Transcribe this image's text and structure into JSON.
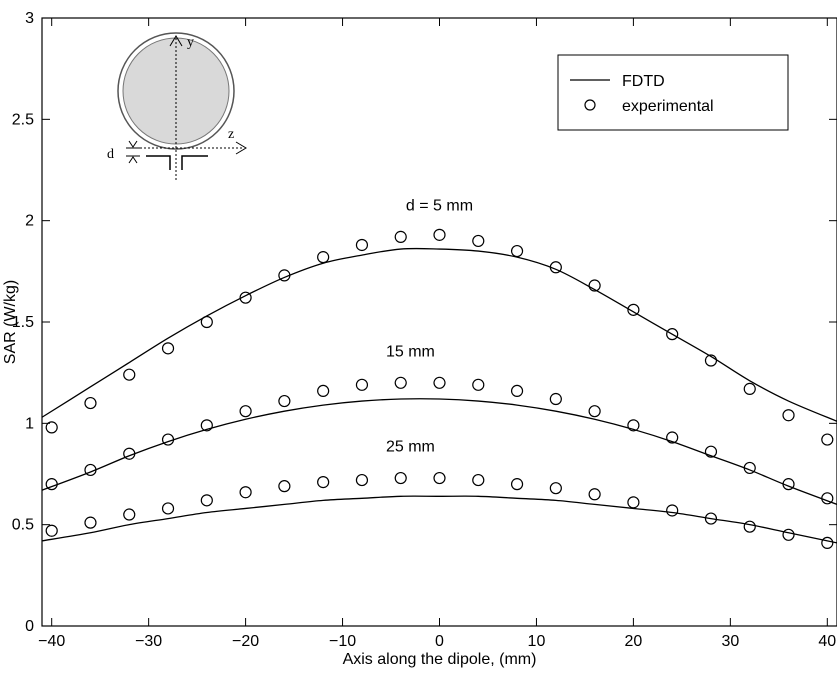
{
  "chart_data": {
    "type": "line",
    "title": "",
    "xlabel": "Axis along the dipole, (mm)",
    "ylabel": "SAR (W/kg)",
    "xlim": [
      -41,
      41
    ],
    "ylim": [
      0,
      3
    ],
    "xticks": [
      -40,
      -30,
      -20,
      -10,
      0,
      10,
      20,
      30,
      40
    ],
    "xtick_labels": [
      "−40",
      "−30",
      "−20",
      "−10",
      "0",
      "10",
      "20",
      "30",
      "40"
    ],
    "yticks": [
      0,
      0.5,
      1,
      1.5,
      2,
      2.5,
      3
    ],
    "ytick_labels": [
      "0",
      "0.5",
      "1",
      "1.5",
      "2",
      "2.5",
      "3"
    ],
    "grid": false,
    "legend": {
      "position": "top-right",
      "entries": [
        {
          "label": "FDTD",
          "marker": "line"
        },
        {
          "label": "experimental",
          "marker": "circle"
        }
      ]
    },
    "series": [
      {
        "group": "d = 5 mm",
        "kind": "FDTD",
        "style": "line",
        "x": [
          -41,
          -36,
          -32,
          -28,
          -24,
          -20,
          -16,
          -12,
          -8,
          -4,
          0,
          4,
          8,
          12,
          16,
          20,
          24,
          28,
          32,
          36,
          41
        ],
        "y": [
          1.03,
          1.18,
          1.3,
          1.42,
          1.53,
          1.63,
          1.72,
          1.79,
          1.83,
          1.86,
          1.86,
          1.85,
          1.82,
          1.76,
          1.66,
          1.55,
          1.44,
          1.33,
          1.21,
          1.11,
          1.01
        ]
      },
      {
        "group": "d = 5 mm",
        "kind": "experimental",
        "style": "circle",
        "x": [
          -40,
          -36,
          -32,
          -28,
          -24,
          -20,
          -16,
          -12,
          -8,
          -4,
          0,
          4,
          8,
          12,
          16,
          20,
          24,
          28,
          32,
          36,
          40
        ],
        "y": [
          0.98,
          1.1,
          1.24,
          1.37,
          1.5,
          1.62,
          1.73,
          1.82,
          1.88,
          1.92,
          1.93,
          1.9,
          1.85,
          1.77,
          1.68,
          1.56,
          1.44,
          1.31,
          1.17,
          1.04,
          0.92
        ]
      },
      {
        "group": "15 mm",
        "kind": "FDTD",
        "style": "line",
        "x": [
          -41,
          -36,
          -32,
          -28,
          -24,
          -20,
          -16,
          -12,
          -8,
          -4,
          0,
          4,
          8,
          12,
          16,
          20,
          24,
          28,
          32,
          36,
          41
        ],
        "y": [
          0.67,
          0.76,
          0.84,
          0.91,
          0.97,
          1.02,
          1.06,
          1.09,
          1.11,
          1.12,
          1.12,
          1.11,
          1.09,
          1.06,
          1.02,
          0.97,
          0.91,
          0.84,
          0.77,
          0.69,
          0.6
        ]
      },
      {
        "group": "15 mm",
        "kind": "experimental",
        "style": "circle",
        "x": [
          -40,
          -36,
          -32,
          -28,
          -24,
          -20,
          -16,
          -12,
          -8,
          -4,
          0,
          4,
          8,
          12,
          16,
          20,
          24,
          28,
          32,
          36,
          40
        ],
        "y": [
          0.7,
          0.77,
          0.85,
          0.92,
          0.99,
          1.06,
          1.11,
          1.16,
          1.19,
          1.2,
          1.2,
          1.19,
          1.16,
          1.12,
          1.06,
          0.99,
          0.93,
          0.86,
          0.78,
          0.7,
          0.63
        ]
      },
      {
        "group": "25 mm",
        "kind": "FDTD",
        "style": "line",
        "x": [
          -41,
          -36,
          -32,
          -28,
          -24,
          -20,
          -16,
          -12,
          -8,
          -4,
          0,
          4,
          8,
          12,
          16,
          20,
          24,
          28,
          32,
          36,
          41
        ],
        "y": [
          0.42,
          0.46,
          0.5,
          0.53,
          0.56,
          0.58,
          0.6,
          0.62,
          0.63,
          0.64,
          0.64,
          0.64,
          0.63,
          0.62,
          0.6,
          0.58,
          0.56,
          0.53,
          0.5,
          0.46,
          0.41
        ]
      },
      {
        "group": "25 mm",
        "kind": "experimental",
        "style": "circle",
        "x": [
          -40,
          -36,
          -32,
          -28,
          -24,
          -20,
          -16,
          -12,
          -8,
          -4,
          0,
          4,
          8,
          12,
          16,
          20,
          24,
          28,
          32,
          36,
          40
        ],
        "y": [
          0.47,
          0.51,
          0.55,
          0.58,
          0.62,
          0.66,
          0.69,
          0.71,
          0.72,
          0.73,
          0.73,
          0.72,
          0.7,
          0.68,
          0.65,
          0.61,
          0.57,
          0.53,
          0.49,
          0.45,
          0.41
        ]
      }
    ],
    "annotations": [
      {
        "text": "d = 5 mm",
        "x": 0,
        "y": 2.05
      },
      {
        "text": "15 mm",
        "x": -3,
        "y": 1.33
      },
      {
        "text": "25 mm",
        "x": -3,
        "y": 0.86
      }
    ],
    "inset": {
      "labels": {
        "y_axis": "y",
        "z_axis": "z",
        "distance": "d"
      }
    }
  }
}
